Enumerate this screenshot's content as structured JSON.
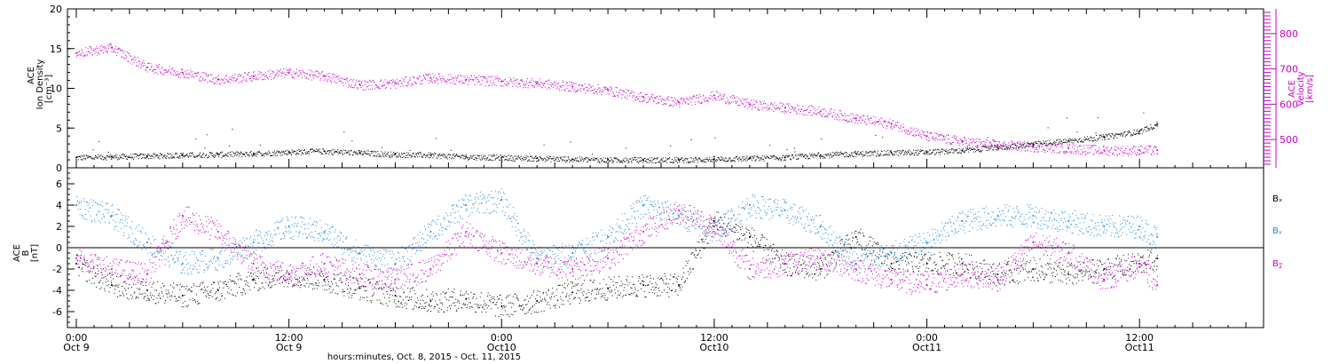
{
  "chart_data": [
    {
      "type": "scatter",
      "panel": "top",
      "ylabel_left": [
        "ACE",
        "Ion Density",
        "[cm⁻³]"
      ],
      "ylabel_right": [
        "ACE",
        "Velocity",
        "[km/s]"
      ],
      "ylim_left": [
        0,
        20
      ],
      "yticks_left": [
        0,
        5,
        10,
        15,
        20
      ],
      "ylim_right": [
        420,
        870
      ],
      "yticks_right": [
        500,
        600,
        700,
        800
      ],
      "series": [
        {
          "axis": "left",
          "color": "#000000",
          "x_hours": [
            0,
            2,
            4,
            6,
            8,
            10,
            12,
            14,
            16,
            18,
            20,
            22,
            24,
            26,
            28,
            30,
            32,
            34,
            36,
            38,
            40,
            42,
            44,
            46,
            48,
            50,
            52,
            54,
            56,
            58,
            60,
            61
          ],
          "values": [
            1.3,
            1.4,
            1.5,
            1.6,
            1.7,
            1.8,
            2.0,
            2.1,
            1.9,
            1.7,
            1.6,
            1.4,
            1.3,
            1.2,
            1.1,
            1.0,
            1.0,
            1.0,
            1.1,
            1.2,
            1.3,
            1.6,
            1.8,
            1.9,
            2.0,
            2.2,
            2.6,
            3.0,
            3.4,
            3.9,
            4.6,
            5.5
          ]
        },
        {
          "axis": "right",
          "color": "#cc00cc",
          "x_hours": [
            0,
            2,
            4,
            6,
            8,
            10,
            12,
            14,
            16,
            18,
            20,
            22,
            24,
            26,
            28,
            30,
            32,
            34,
            36,
            38,
            40,
            42,
            44,
            46,
            48,
            50,
            52,
            54,
            56,
            58,
            60,
            61
          ],
          "values": [
            745,
            760,
            705,
            690,
            670,
            680,
            690,
            680,
            655,
            660,
            675,
            670,
            665,
            660,
            650,
            640,
            620,
            605,
            625,
            600,
            590,
            580,
            560,
            545,
            510,
            495,
            485,
            480,
            475,
            470,
            470,
            470
          ]
        }
      ]
    },
    {
      "type": "scatter",
      "panel": "bottom",
      "ylabel_left": [
        "ACE",
        "B",
        "[nT]"
      ],
      "ylim": [
        -7.5,
        7.5
      ],
      "yticks": [
        -6,
        -4,
        -2,
        0,
        2,
        4,
        6
      ],
      "zero_line": true,
      "legend": [
        {
          "label": "Bₓ",
          "color": "#000000"
        },
        {
          "label": "Bᵧ",
          "color": "#1a86e8"
        },
        {
          "label": "B𝓏",
          "color": "#cc00cc"
        }
      ],
      "series": [
        {
          "color": "#000000",
          "x_hours": [
            0,
            2,
            4,
            6,
            8,
            10,
            12,
            14,
            16,
            18,
            20,
            22,
            24,
            26,
            28,
            30,
            32,
            34,
            36,
            38,
            40,
            42,
            44,
            46,
            48,
            50,
            52,
            54,
            56,
            58,
            60,
            61
          ],
          "values": [
            -1.5,
            -3.5,
            -4.0,
            -4.5,
            -4.0,
            -3.0,
            -2.5,
            -3.0,
            -3.8,
            -4.5,
            -5.0,
            -4.8,
            -5.5,
            -5.0,
            -4.2,
            -3.8,
            -3.5,
            -3.5,
            2.5,
            1.0,
            -1.5,
            -2.0,
            1.0,
            -1.5,
            -1.5,
            -1.5,
            -2.5,
            -2.0,
            -2.5,
            -2.0,
            -1.5,
            -1.0
          ]
        },
        {
          "color": "#1a86e8",
          "x_hours": [
            0,
            2,
            4,
            6,
            8,
            10,
            12,
            14,
            16,
            18,
            20,
            22,
            24,
            26,
            28,
            30,
            32,
            34,
            36,
            38,
            40,
            42,
            44,
            46,
            48,
            50,
            52,
            54,
            56,
            58,
            60,
            61
          ],
          "values": [
            4.0,
            3.0,
            0.5,
            -1.5,
            -1.0,
            0.5,
            2.0,
            1.5,
            -0.5,
            -1.5,
            1.5,
            4.0,
            4.5,
            -1.0,
            -0.5,
            1.0,
            4.0,
            3.0,
            1.5,
            4.0,
            3.5,
            2.0,
            -1.5,
            -0.5,
            0.5,
            2.5,
            3.0,
            3.0,
            2.5,
            2.0,
            2.0,
            1.0
          ]
        },
        {
          "color": "#cc00cc",
          "x_hours": [
            0,
            2,
            4,
            6,
            8,
            10,
            12,
            14,
            16,
            18,
            20,
            22,
            24,
            26,
            28,
            30,
            32,
            34,
            36,
            38,
            40,
            42,
            44,
            46,
            48,
            50,
            52,
            54,
            56,
            58,
            60,
            61
          ],
          "values": [
            -1.0,
            -2.0,
            -2.5,
            3.0,
            1.5,
            -1.5,
            -2.5,
            -1.5,
            -2.5,
            -3.0,
            -2.0,
            1.5,
            -0.5,
            -1.5,
            -2.0,
            -1.0,
            1.5,
            3.5,
            2.0,
            -2.0,
            -1.5,
            -1.0,
            -2.0,
            -3.0,
            -3.5,
            -2.5,
            -3.0,
            0.5,
            -0.5,
            -3.0,
            -1.5,
            -3.5
          ]
        }
      ]
    }
  ],
  "x_axis": {
    "xlim_hours": [
      -0.5,
      67
    ],
    "major_ticks": [
      {
        "hour": 0,
        "time": "0:00",
        "date": "Oct 9"
      },
      {
        "hour": 12,
        "time": "12:00",
        "date": "Oct 9"
      },
      {
        "hour": 24,
        "time": "0:00",
        "date": "Oct10"
      },
      {
        "hour": 36,
        "time": "12:00",
        "date": "Oct10"
      },
      {
        "hour": 48,
        "time": "0:00",
        "date": "Oct11"
      },
      {
        "hour": 60,
        "time": "12:00",
        "date": "Oct11"
      }
    ],
    "label": "hours:minutes, Oct.  8, 2015 - Oct. 11, 2015"
  }
}
